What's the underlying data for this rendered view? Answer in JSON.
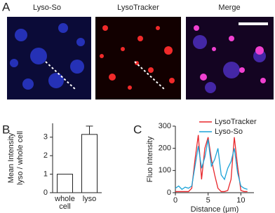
{
  "panel_labels": [
    "A",
    "B",
    "C"
  ],
  "images": {
    "titles": [
      "Lyso-So",
      "LysoTracker",
      "Merge"
    ]
  },
  "chart_data": [
    {
      "type": "bar",
      "y_label": [
        "Mean Intensity",
        "lyso / whole cell"
      ],
      "categories": [
        "whole cell",
        "lyso"
      ],
      "values": [
        1,
        3.15
      ],
      "errors": [
        null,
        0.45
      ],
      "color": "#ffffff",
      "ylim": [
        0,
        3.75
      ],
      "yticks": [
        0,
        1,
        2,
        3
      ]
    },
    {
      "type": "line",
      "x_label": "Distance (μm)",
      "y_label": "Fluo Intensity",
      "x": [
        0,
        0.5,
        1,
        1.5,
        2,
        2.5,
        3,
        3.5,
        4,
        4.5,
        5,
        5.5,
        6,
        6.5,
        7,
        7.5,
        8,
        8.5,
        9,
        9.5,
        10,
        10.5,
        11
      ],
      "series": [
        {
          "name": "LysoTracker",
          "color": "#e8262b",
          "values": [
            5,
            5,
            5,
            5,
            5,
            20,
            150,
            260,
            60,
            200,
            250,
            150,
            80,
            20,
            5,
            5,
            10,
            60,
            250,
            120,
            10,
            5,
            5
          ]
        },
        {
          "name": "Lyso-So",
          "color": "#1ba3d8",
          "values": [
            20,
            30,
            15,
            25,
            20,
            30,
            120,
            210,
            110,
            160,
            240,
            120,
            150,
            200,
            80,
            60,
            110,
            140,
            200,
            90,
            30,
            20,
            15
          ]
        }
      ],
      "xlim": [
        0,
        12
      ],
      "xticks": [
        0,
        5,
        10
      ],
      "ylim": [
        0,
        300
      ],
      "yticks": [
        0,
        100,
        200,
        300
      ],
      "legend": "top-right"
    }
  ]
}
